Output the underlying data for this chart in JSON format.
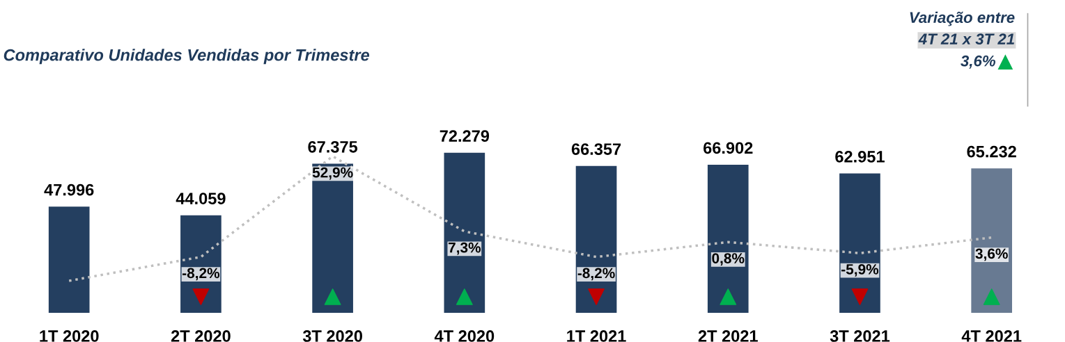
{
  "chart_data": {
    "type": "bar",
    "title": "Comparativo Unidades Vendidas por Trimestre",
    "categories": [
      "1T 2020",
      "2T 2020",
      "3T 2020",
      "4T 2020",
      "1T 2021",
      "2T 2021",
      "3T 2021",
      "4T 2021"
    ],
    "series": [
      {
        "values": [
          47996,
          44059,
          67375,
          72279,
          66357,
          66902,
          62951,
          65232
        ],
        "colors": [
          "#243f60",
          "#243f60",
          "#243f60",
          "#243f60",
          "#243f60",
          "#243f60",
          "#243f60",
          "#687a92"
        ],
        "value_labels": [
          "47.996",
          "44.059",
          "67.375",
          "72.279",
          "66.357",
          "66.902",
          "62.951",
          "65.232"
        ]
      },
      {
        "type": "line",
        "axis": "y2",
        "color": "#bfbfbf",
        "line_style": "dotted",
        "marker": "none",
        "values": [
          -22.7,
          -8.2,
          52.9,
          7.3,
          -8.2,
          0.8,
          -5.9,
          3.6
        ],
        "value_labels": [
          null,
          "-8,2%",
          "52,9%",
          "7,3%",
          "-8,2%",
          "0,8%",
          "-5,9%",
          "3,6%"
        ],
        "colors": [
          null,
          "#c00000",
          "#00b050",
          "#00b050",
          "#c00000",
          "#00b050",
          "#c00000",
          "#00b050"
        ]
      }
    ],
    "annotations": [
      "Variação entre",
      "4T 21 x 3T 21",
      "3,6%"
    ],
    "tick_labels": "x",
    "grid": false,
    "legend": false
  }
}
